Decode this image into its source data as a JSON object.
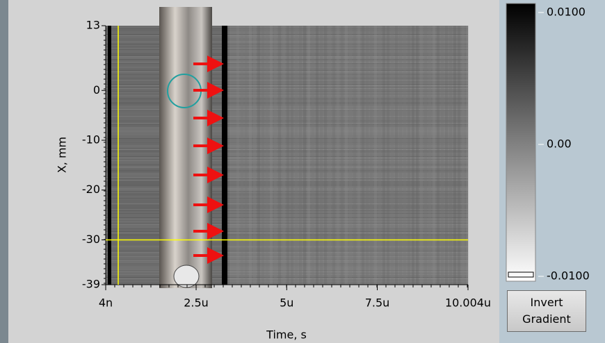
{
  "chart_data": {
    "type": "intensity",
    "x_label": "Time, s",
    "y_label": "X, mm",
    "xlim": [
      4e-09,
      1.0004e-05
    ],
    "xticks": [
      {
        "value": 4e-09,
        "label": "4n"
      },
      {
        "value": 2.5e-06,
        "label": "2.5u"
      },
      {
        "value": 5e-06,
        "label": "5u"
      },
      {
        "value": 7.5e-06,
        "label": "7.5u"
      },
      {
        "value": 1.0004e-05,
        "label": "10.004u"
      }
    ],
    "ylim": [
      -39,
      13
    ],
    "yticks": [
      13,
      0,
      -10,
      -20,
      -30,
      -39
    ],
    "zlim": [
      -0.01,
      0.01
    ],
    "zticks": [
      {
        "value": 0.01,
        "label": "0.0100"
      },
      {
        "value": 0,
        "label": "0.00"
      },
      {
        "value": -0.01,
        "label": "-0.0100"
      }
    ],
    "cursor": {
      "x": 3.5e-07,
      "y": -30,
      "color": "#ffff00"
    },
    "button": "Invert Gradient"
  }
}
